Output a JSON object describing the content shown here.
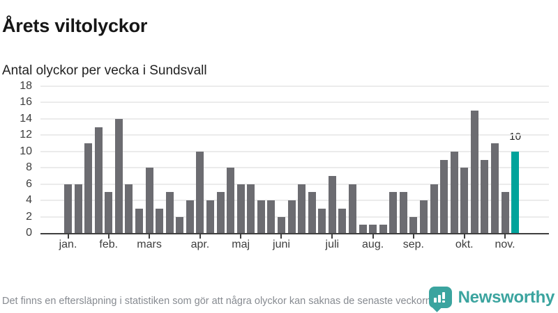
{
  "header": {
    "title": "Årets viltolyckor",
    "subtitle": "Antal olyckor per vecka i Sundsvall"
  },
  "chart_data": {
    "type": "bar",
    "title": "Årets viltolyckor",
    "subtitle": "Antal olyckor per vecka i Sundsvall",
    "x_unit": "vecka",
    "weeks": [
      1,
      2,
      3,
      4,
      5,
      6,
      7,
      8,
      9,
      10,
      11,
      12,
      13,
      14,
      15,
      16,
      17,
      18,
      19,
      20,
      21,
      22,
      23,
      24,
      25,
      26,
      27,
      28,
      29,
      30,
      31,
      32,
      33,
      34,
      35,
      36,
      37,
      38,
      39,
      40,
      41,
      42,
      43,
      44,
      45
    ],
    "values": [
      6,
      6,
      11,
      13,
      5,
      14,
      6,
      3,
      8,
      3,
      5,
      2,
      4,
      10,
      4,
      5,
      8,
      6,
      6,
      4,
      4,
      2,
      4,
      6,
      5,
      3,
      7,
      3,
      6,
      1,
      1,
      1,
      5,
      5,
      2,
      4,
      6,
      9,
      10,
      8,
      15,
      9,
      11,
      5,
      10
    ],
    "highlight": {
      "index": 45,
      "label": "10",
      "color": "#00a39b"
    },
    "bar_color": "#6c6c71",
    "ylim": [
      0,
      18
    ],
    "yticks": [
      0,
      2,
      4,
      6,
      8,
      10,
      12,
      14,
      16,
      18
    ],
    "grid": true,
    "legend": "none",
    "month_ticks": [
      {
        "label": "jan.",
        "week": 1
      },
      {
        "label": "feb.",
        "week": 5
      },
      {
        "label": "mars",
        "week": 9
      },
      {
        "label": "apr.",
        "week": 14
      },
      {
        "label": "maj",
        "week": 18
      },
      {
        "label": "juni",
        "week": 22
      },
      {
        "label": "juli",
        "week": 27
      },
      {
        "label": "aug.",
        "week": 31
      },
      {
        "label": "sep.",
        "week": 35
      },
      {
        "label": "okt.",
        "week": 40
      },
      {
        "label": "nov.",
        "week": 44
      }
    ],
    "axis_color": "#3e3e3e",
    "grid_color": "#ebebeb",
    "tick_label_color": "#3d3d3d"
  },
  "footer": {
    "note": "Det finns en eftersläpning i statistiken som gör att några olyckor kan saknas de senaste veckorna.",
    "brand": "Newsworthy",
    "brand_color": "#3ba49f"
  }
}
